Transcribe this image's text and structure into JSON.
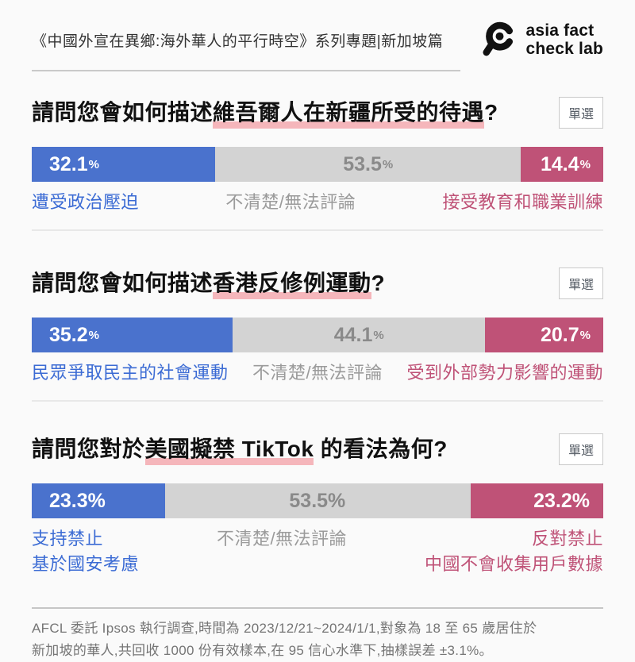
{
  "colors": {
    "blue_bar": "#4a72cd",
    "gray_bar": "#d3d3d3",
    "pink_bar": "#bf5277",
    "blue_text": "#3b6bd4",
    "gray_text": "#9b9b9b",
    "pink_text": "#bf5277",
    "highlight_underline": "#f5b6bb",
    "background": "#fafafa"
  },
  "header": {
    "title": "《中國外宣在異鄉:海外華人的平行時空》系列專題|新加坡篇",
    "logo": {
      "icon": "magnifier-icon",
      "line1": "asia fact",
      "line2": "check lab"
    }
  },
  "questions": [
    {
      "badge": "單選",
      "title_prefix": "請問您會如何描述",
      "title_highlight": "維吾爾人在新疆所受的待遇",
      "title_suffix": "?",
      "segments": [
        {
          "value": "32.1",
          "unit": "%",
          "width_pct": 32.1,
          "label": "遭受政治壓迫"
        },
        {
          "value": "53.5",
          "unit": "%",
          "width_pct": 53.5,
          "label": "不清楚/無法評論"
        },
        {
          "value": "14.4",
          "unit": "%",
          "width_pct": 14.4,
          "label": "接受教育和職業訓練"
        }
      ]
    },
    {
      "badge": "單選",
      "title_prefix": "請問您會如何描述",
      "title_highlight": "香港反修例運動",
      "title_suffix": "?",
      "segments": [
        {
          "value": "35.2",
          "unit": "%",
          "width_pct": 35.2,
          "label": "民眾爭取民主的社會運動"
        },
        {
          "value": "44.1",
          "unit": "%",
          "width_pct": 44.1,
          "label": "不清楚/無法評論"
        },
        {
          "value": "20.7",
          "unit": "%",
          "width_pct": 20.7,
          "label": "受到外部勢力影響的運動"
        }
      ]
    },
    {
      "badge": "單選",
      "title_prefix": "請問您對於",
      "title_highlight": "美國擬禁 TikTok",
      "title_suffix": " 的看法為何?",
      "segments": [
        {
          "value": "23.3%",
          "unit": "",
          "width_pct": 23.3,
          "label": "支持禁止",
          "label_line2": "基於國安考慮"
        },
        {
          "value": "53.5%",
          "unit": "",
          "width_pct": 53.5,
          "label": "不清楚/無法評論"
        },
        {
          "value": "23.2%",
          "unit": "",
          "width_pct": 23.2,
          "label": "反對禁止",
          "label_line2": "中國不會收集用戶數據"
        }
      ]
    }
  ],
  "footer": {
    "line1": "AFCL 委託 Ipsos 執行調查,時間為 2023/12/21~2024/1/1,對象為 18 至 65 歲居住於",
    "line2": "新加坡的華人,共回收 1000 份有效樣本,在 95 信心水準下,抽樣誤差 ±3.1%。"
  },
  "chart_data": [
    {
      "type": "bar",
      "stacked": true,
      "title": "請問您會如何描述維吾爾人在新疆所受的待遇?",
      "categories": [
        "遭受政治壓迫",
        "不清楚/無法評論",
        "接受教育和職業訓練"
      ],
      "values": [
        32.1,
        53.5,
        14.4
      ],
      "unit": "%",
      "colors": [
        "#4a72cd",
        "#d3d3d3",
        "#bf5277"
      ],
      "xlim": [
        0,
        100
      ]
    },
    {
      "type": "bar",
      "stacked": true,
      "title": "請問您會如何描述香港反修例運動?",
      "categories": [
        "民眾爭取民主的社會運動",
        "不清楚/無法評論",
        "受到外部勢力影響的運動"
      ],
      "values": [
        35.2,
        44.1,
        20.7
      ],
      "unit": "%",
      "colors": [
        "#4a72cd",
        "#d3d3d3",
        "#bf5277"
      ],
      "xlim": [
        0,
        100
      ]
    },
    {
      "type": "bar",
      "stacked": true,
      "title": "請問您對於美國擬禁 TikTok 的看法為何?",
      "categories": [
        "支持禁止 基於國安考慮",
        "不清楚/無法評論",
        "反對禁止 中國不會收集用戶數據"
      ],
      "values": [
        23.3,
        53.5,
        23.2
      ],
      "unit": "%",
      "colors": [
        "#4a72cd",
        "#d3d3d3",
        "#bf5277"
      ],
      "xlim": [
        0,
        100
      ]
    }
  ]
}
